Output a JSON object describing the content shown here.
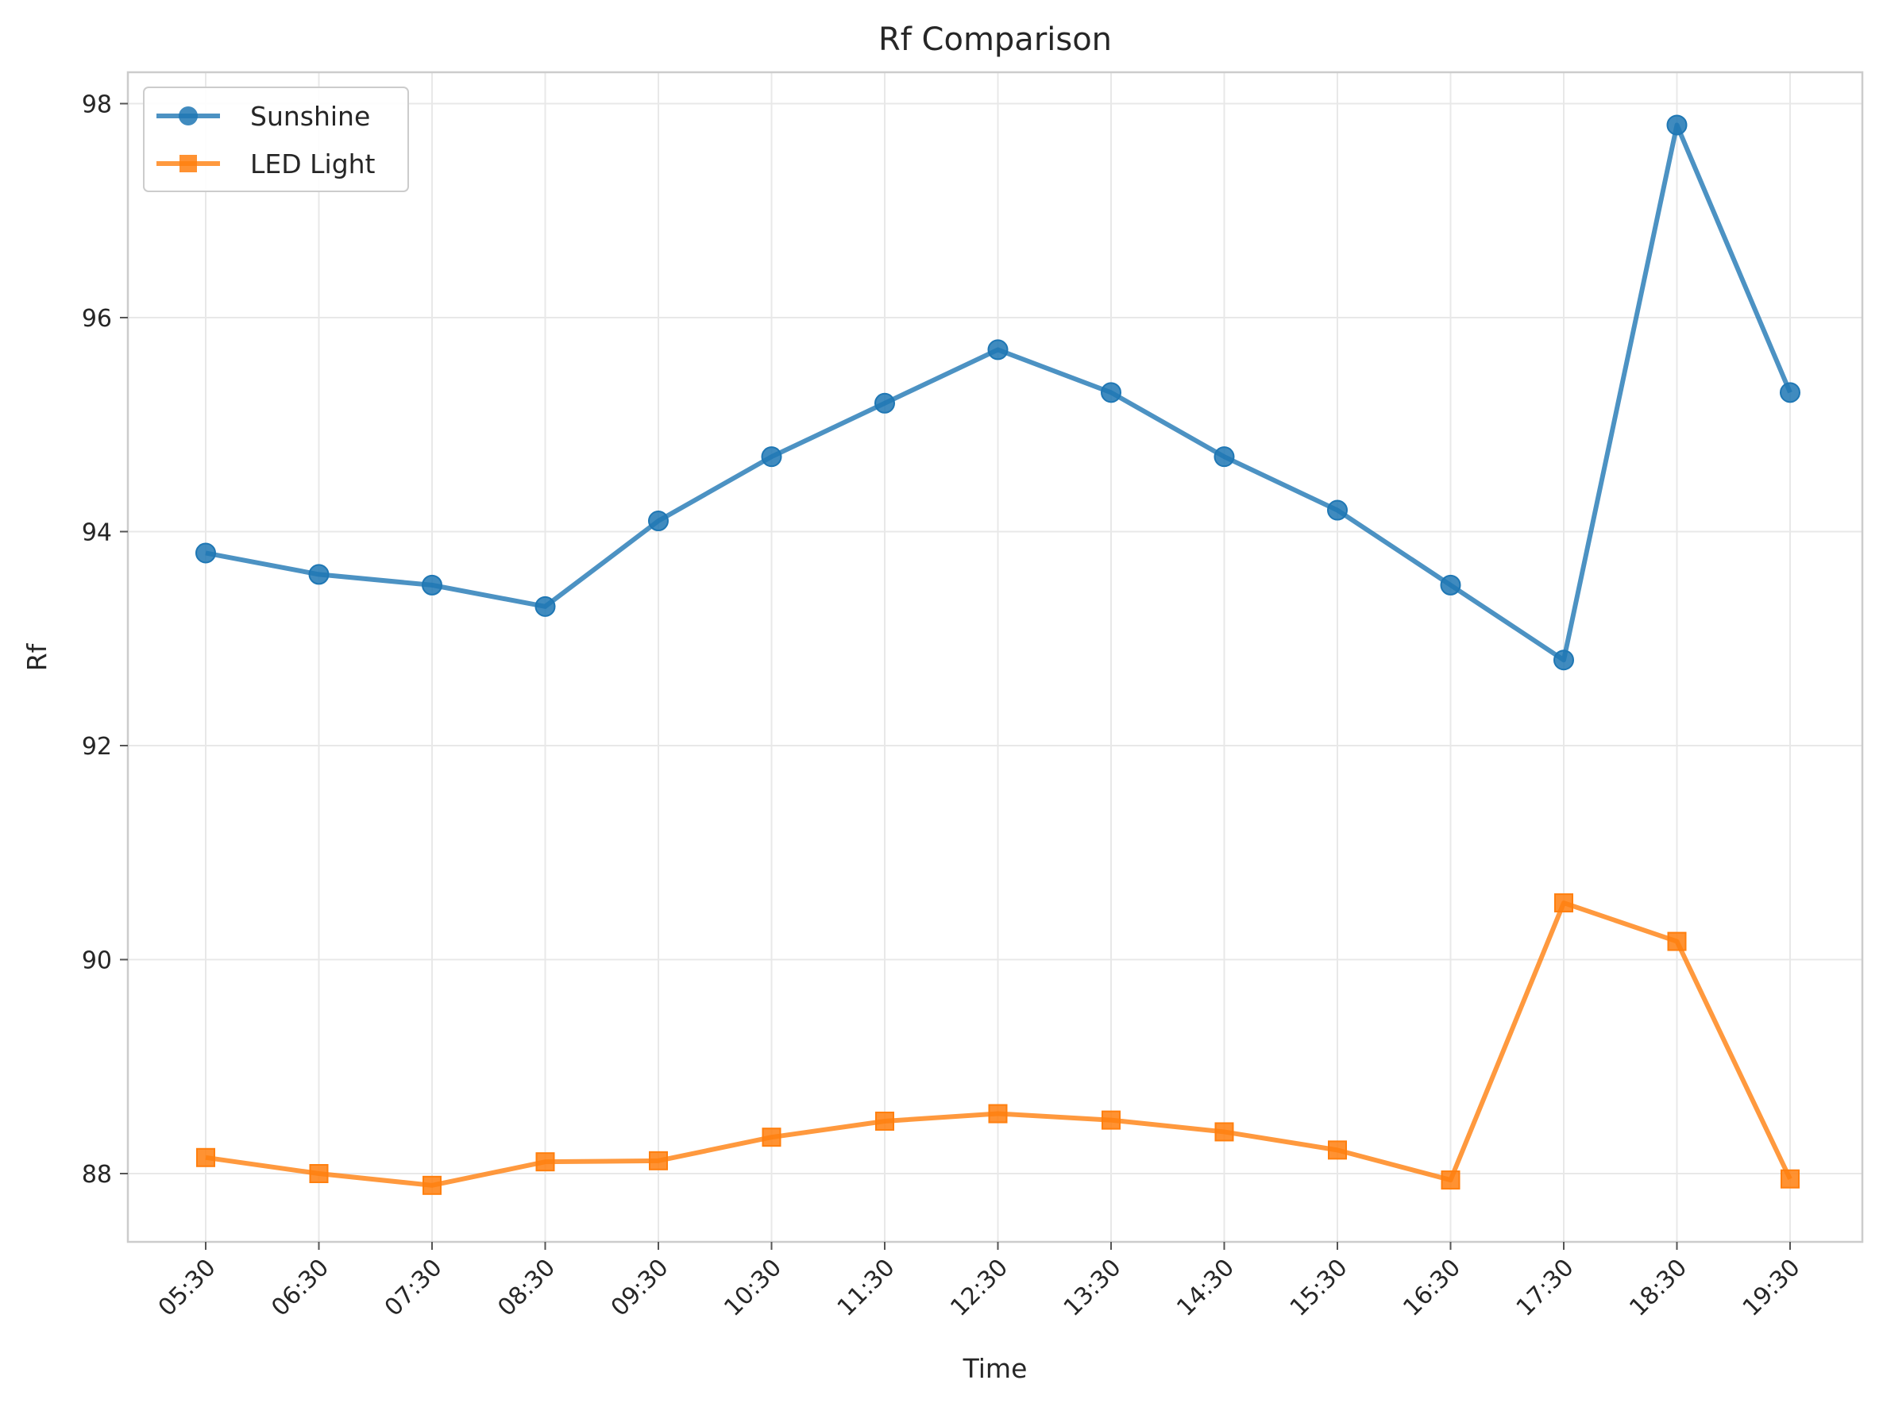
{
  "chart_data": {
    "type": "line",
    "title": "Rf Comparison",
    "xlabel": "Time",
    "ylabel": "Rf",
    "categories": [
      "05:30",
      "06:30",
      "07:30",
      "08:30",
      "09:30",
      "10:30",
      "11:30",
      "12:30",
      "13:30",
      "14:30",
      "15:30",
      "16:30",
      "17:30",
      "18:30",
      "19:30"
    ],
    "yticks": [
      "88",
      "90",
      "92",
      "94",
      "96",
      "98"
    ],
    "ylim": [
      87.4,
      98.3
    ],
    "grid": true,
    "legend_position": "upper-left",
    "series": [
      {
        "name": "Sunshine",
        "color": "#1f77b4",
        "marker": "circle",
        "values": [
          93.8,
          93.6,
          93.5,
          93.3,
          94.1,
          94.7,
          95.2,
          95.7,
          95.3,
          94.7,
          94.2,
          93.5,
          92.8,
          97.8,
          95.3
        ]
      },
      {
        "name": "LED Light",
        "color": "#ff7f0e",
        "marker": "square",
        "values": [
          88.15,
          88.0,
          87.89,
          88.11,
          88.12,
          88.34,
          88.49,
          88.56,
          88.5,
          88.39,
          88.22,
          87.94,
          90.53,
          90.17,
          87.95
        ]
      }
    ]
  }
}
